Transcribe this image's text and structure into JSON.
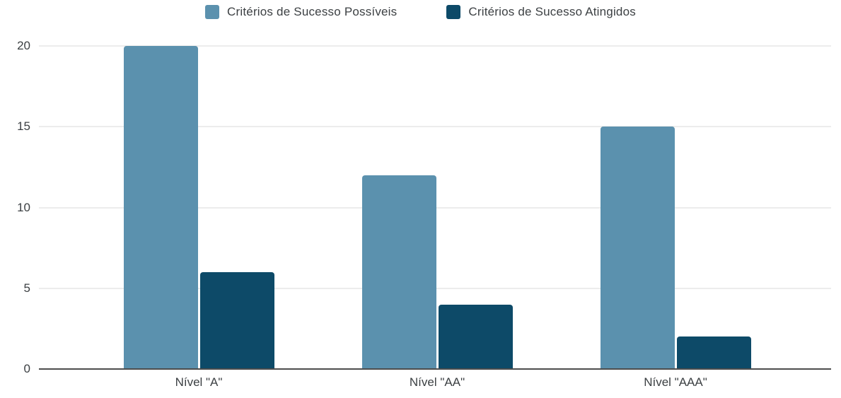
{
  "colors": {
    "series_possiveis": "#5b91ae",
    "series_atingidos": "#0d4a68",
    "gridline": "#d9d9d9",
    "baseline": "#4d4d4d",
    "text": "#3c4043",
    "background": "#ffffff"
  },
  "legend": {
    "items": [
      {
        "label": "Critérios de Sucesso Possíveis",
        "color": "#5b91ae"
      },
      {
        "label": "Critérios de Sucesso Atingidos",
        "color": "#0d4a68"
      }
    ]
  },
  "chart_data": {
    "type": "bar",
    "title": "",
    "xlabel": "",
    "ylabel": "",
    "categories": [
      "Nível \"A\"",
      "Nível \"AA\"",
      "Nível \"AAA\""
    ],
    "series": [
      {
        "name": "Critérios de Sucesso Possíveis",
        "values": [
          20,
          12,
          15
        ],
        "color": "#5b91ae"
      },
      {
        "name": "Critérios de Sucesso Atingidos",
        "values": [
          6,
          4,
          2
        ],
        "color": "#0d4a68"
      }
    ],
    "ylim": [
      0,
      20
    ],
    "yticks": [
      0,
      5,
      10,
      15,
      20
    ],
    "grid": true,
    "legend_position": "top"
  }
}
